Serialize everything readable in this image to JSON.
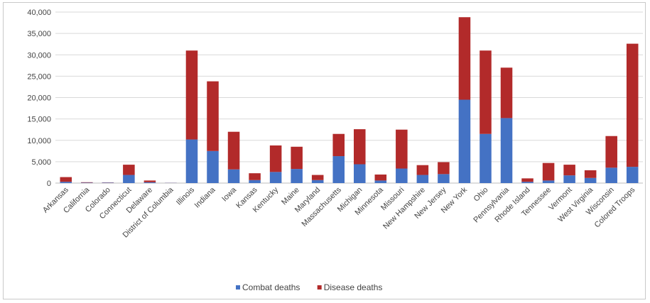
{
  "chart_data": {
    "type": "bar",
    "stacked": true,
    "categories": [
      "Arkansas",
      "California",
      "Colorado",
      "Connecticut",
      "Delaware",
      "District of Columbia",
      "Illinois",
      "Indiana",
      "Iowa",
      "Kansas",
      "Kentucky",
      "Maine",
      "Maryland",
      "Massachusetts",
      "Michigan",
      "Minnesota",
      "Missouri",
      "New Hampshire",
      "New Jersey",
      "New York",
      "Ohio",
      "Pennsylvania",
      "Rhode Island",
      "Tennessee",
      "Vermont",
      "West Virginia",
      "Wisconsin",
      "Colored Troops"
    ],
    "series": [
      {
        "name": "Combat deaths",
        "color": "#4472c4",
        "values": [
          300,
          100,
          100,
          1900,
          200,
          50,
          10200,
          7500,
          3200,
          700,
          2600,
          3300,
          700,
          6300,
          4400,
          600,
          3400,
          1900,
          2100,
          19500,
          11500,
          15200,
          300,
          600,
          1800,
          1200,
          3600,
          3800
        ]
      },
      {
        "name": "Disease deaths",
        "color": "#b22a2a",
        "values": [
          1100,
          100,
          50,
          2400,
          400,
          20,
          20800,
          16300,
          8800,
          1600,
          6200,
          5200,
          1200,
          5200,
          8200,
          1400,
          9100,
          2300,
          2800,
          19300,
          19500,
          11800,
          800,
          4100,
          2500,
          1800,
          7400,
          28800
        ]
      }
    ],
    "ylim": [
      0,
      40000
    ],
    "yticks": [
      "0",
      "5,000",
      "10,000",
      "15,000",
      "20,000",
      "25,000",
      "30,000",
      "35,000",
      "40,000"
    ],
    "ytick_values": [
      0,
      5000,
      10000,
      15000,
      20000,
      25000,
      30000,
      35000,
      40000
    ],
    "grid": true,
    "legend_position": "bottom"
  }
}
